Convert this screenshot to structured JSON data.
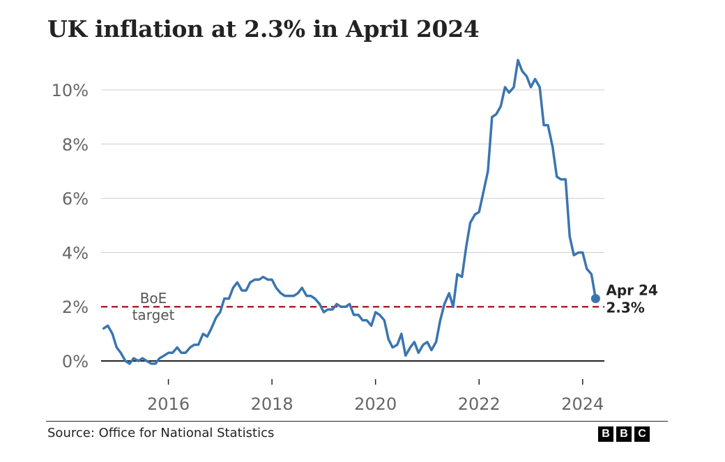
{
  "title": "UK inflation at 2.3% in April 2024",
  "source": "Source: Office for National Statistics",
  "brand": {
    "letters": [
      "B",
      "B",
      "C"
    ]
  },
  "colors": {
    "line": "#3a75b0",
    "target": "#b0202a",
    "grid": "#cccccc",
    "axis": "#222222",
    "tick": "#666666"
  },
  "chart_data": {
    "type": "line",
    "x_unit": "year (decimal)",
    "xlim": [
      2014.7,
      2024.42
    ],
    "ylim": [
      -0.6,
      11.2
    ],
    "y_ticks": [
      {
        "value": 0,
        "label": "0%"
      },
      {
        "value": 2,
        "label": "2%"
      },
      {
        "value": 4,
        "label": "4%"
      },
      {
        "value": 6,
        "label": "6%"
      },
      {
        "value": 8,
        "label": "8%"
      },
      {
        "value": 10,
        "label": "10%"
      }
    ],
    "x_ticks": [
      {
        "value": 2016,
        "label": "2016"
      },
      {
        "value": 2018,
        "label": "2018"
      },
      {
        "value": 2020,
        "label": "2020"
      },
      {
        "value": 2022,
        "label": "2022"
      },
      {
        "value": 2024,
        "label": "2024"
      }
    ],
    "grid": true,
    "target": {
      "value": 2,
      "label_lines": [
        "BoE",
        "target"
      ]
    },
    "end_label": {
      "lines": [
        "Apr 24",
        "2.3%"
      ]
    },
    "series": [
      {
        "x": [
          2014.75,
          2014.83,
          2014.92,
          2015.0,
          2015.08,
          2015.17,
          2015.25,
          2015.33,
          2015.42,
          2015.5,
          2015.58,
          2015.67,
          2015.75,
          2015.83,
          2015.92,
          2016.0,
          2016.08,
          2016.17,
          2016.25,
          2016.33,
          2016.42,
          2016.5,
          2016.58,
          2016.67,
          2016.75,
          2016.83,
          2016.92,
          2017.0,
          2017.08,
          2017.17,
          2017.25,
          2017.33,
          2017.42,
          2017.5,
          2017.58,
          2017.67,
          2017.75,
          2017.83,
          2017.92,
          2018.0,
          2018.08,
          2018.17,
          2018.25,
          2018.33,
          2018.42,
          2018.5,
          2018.58,
          2018.67,
          2018.75,
          2018.83,
          2018.92,
          2019.0,
          2019.08,
          2019.17,
          2019.25,
          2019.33,
          2019.42,
          2019.5,
          2019.58,
          2019.67,
          2019.75,
          2019.83,
          2019.92,
          2020.0,
          2020.08,
          2020.17,
          2020.25,
          2020.33,
          2020.42,
          2020.5,
          2020.58,
          2020.67,
          2020.75,
          2020.83,
          2020.92,
          2021.0,
          2021.08,
          2021.17,
          2021.25,
          2021.33,
          2021.42,
          2021.5,
          2021.58,
          2021.67,
          2021.75,
          2021.83,
          2021.92,
          2022.0,
          2022.08,
          2022.17,
          2022.25,
          2022.33,
          2022.42,
          2022.5,
          2022.58,
          2022.67,
          2022.75,
          2022.83,
          2022.92,
          2023.0,
          2023.08,
          2023.17,
          2023.25,
          2023.33,
          2023.42,
          2023.5,
          2023.58,
          2023.67,
          2023.75,
          2023.83,
          2023.92,
          2024.0,
          2024.08,
          2024.17,
          2024.25
        ],
        "values": [
          1.2,
          1.3,
          1.0,
          0.5,
          0.3,
          0.0,
          -0.1,
          0.1,
          0.0,
          0.1,
          0.0,
          -0.1,
          -0.1,
          0.1,
          0.2,
          0.3,
          0.3,
          0.5,
          0.3,
          0.3,
          0.5,
          0.6,
          0.6,
          1.0,
          0.9,
          1.2,
          1.6,
          1.8,
          2.3,
          2.3,
          2.7,
          2.9,
          2.6,
          2.6,
          2.9,
          3.0,
          3.0,
          3.1,
          3.0,
          3.0,
          2.7,
          2.5,
          2.4,
          2.4,
          2.4,
          2.5,
          2.7,
          2.4,
          2.4,
          2.3,
          2.1,
          1.8,
          1.9,
          1.9,
          2.1,
          2.0,
          2.0,
          2.1,
          1.7,
          1.7,
          1.5,
          1.5,
          1.3,
          1.8,
          1.7,
          1.5,
          0.8,
          0.5,
          0.6,
          1.0,
          0.2,
          0.5,
          0.7,
          0.3,
          0.6,
          0.7,
          0.4,
          0.7,
          1.5,
          2.1,
          2.5,
          2.0,
          3.2,
          3.1,
          4.2,
          5.1,
          5.4,
          5.5,
          6.2,
          7.0,
          9.0,
          9.1,
          9.4,
          10.1,
          9.9,
          10.1,
          11.1,
          10.7,
          10.5,
          10.1,
          10.4,
          10.1,
          8.7,
          8.7,
          7.9,
          6.8,
          6.7,
          6.7,
          4.6,
          3.9,
          4.0,
          4.0,
          3.4,
          3.2,
          2.3
        ]
      }
    ]
  }
}
